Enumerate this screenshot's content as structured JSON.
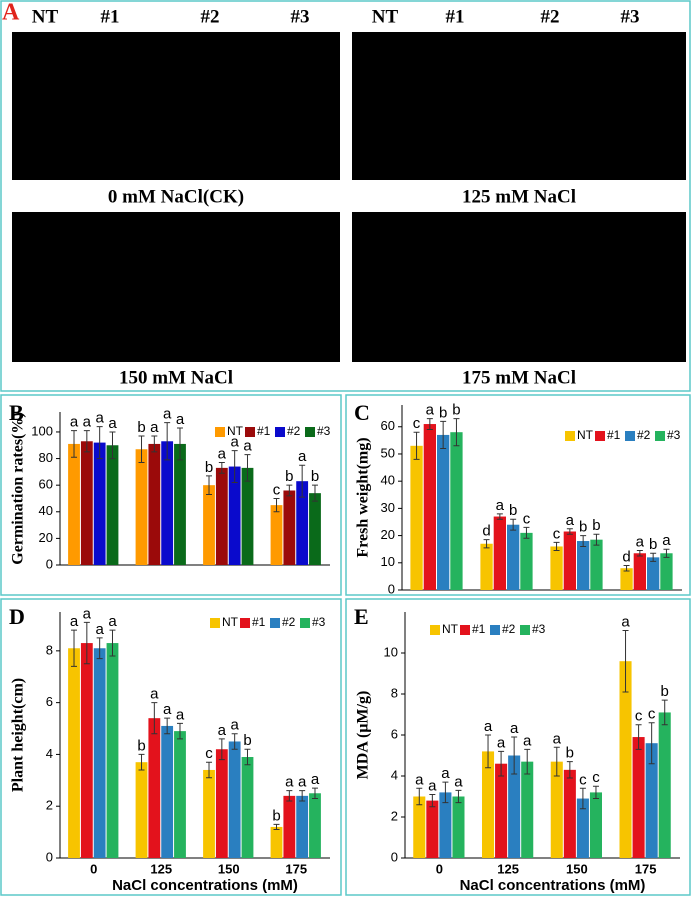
{
  "photos": {
    "panel": "A",
    "headers": [
      "NT",
      "#1",
      "#2",
      "#3"
    ],
    "captions": [
      "0 mM NaCl(CK)",
      "125 mM NaCl",
      "150 mM NaCl",
      "175 mM NaCl"
    ]
  },
  "chart_data": [
    {
      "type": "bar",
      "panel": "B",
      "y_label": "Germination rates(%)",
      "categories": [
        null,
        null,
        null,
        null
      ],
      "ylim": [
        0,
        115
      ],
      "yticks": [
        0,
        20,
        40,
        60,
        80,
        100
      ],
      "series": [
        {
          "name": "NT",
          "color": "#ff9a00",
          "values": [
            91,
            87,
            60,
            45
          ],
          "errors": [
            10,
            10,
            7,
            5
          ],
          "letters": [
            "a",
            "b",
            "b",
            "c"
          ]
        },
        {
          "name": "#1",
          "color": "#9b0a0a",
          "values": [
            93,
            91,
            73,
            56
          ],
          "errors": [
            8,
            6,
            4,
            4
          ],
          "letters": [
            "a",
            "a",
            "a",
            "b"
          ]
        },
        {
          "name": "#2",
          "color": "#0a0acc",
          "values": [
            92,
            93,
            74,
            63
          ],
          "errors": [
            12,
            14,
            12,
            12
          ],
          "letters": [
            "a",
            "a",
            "a",
            "a"
          ]
        },
        {
          "name": "#3",
          "color": "#0a6a1a",
          "values": [
            90,
            91,
            73,
            54
          ],
          "errors": [
            10,
            12,
            10,
            6
          ],
          "letters": [
            "a",
            "a",
            "a",
            "b"
          ]
        }
      ]
    },
    {
      "type": "bar",
      "panel": "C",
      "y_label": "Fresh weight(mg)",
      "categories": [
        null,
        null,
        null,
        null
      ],
      "ylim": [
        0,
        68
      ],
      "yticks": [
        0,
        10,
        20,
        30,
        40,
        50,
        60
      ],
      "series": [
        {
          "name": "NT",
          "color": "#f7c400",
          "values": [
            53,
            17,
            16,
            8
          ],
          "errors": [
            5,
            1.5,
            1.5,
            1
          ],
          "letters": [
            "c",
            "d",
            "c",
            "d"
          ]
        },
        {
          "name": "#1",
          "color": "#e3121c",
          "values": [
            61,
            27,
            21.5,
            13.5
          ],
          "errors": [
            2,
            1,
            1,
            1
          ],
          "letters": [
            "a",
            "a",
            "a",
            "a"
          ]
        },
        {
          "name": "#2",
          "color": "#2a7fc0",
          "values": [
            57,
            24,
            18,
            12
          ],
          "errors": [
            5,
            2,
            2,
            1.5
          ],
          "letters": [
            "b",
            "b",
            "b",
            "b"
          ]
        },
        {
          "name": "#3",
          "color": "#25b35e",
          "values": [
            58,
            21,
            18.5,
            13.5
          ],
          "errors": [
            5,
            2,
            2,
            1.5
          ],
          "letters": [
            "b",
            "c",
            "b",
            "a"
          ]
        }
      ]
    },
    {
      "type": "bar",
      "panel": "D",
      "y_label": "Plant height(cm)",
      "x_label": "NaCl concentrations (mM)",
      "categories": [
        "0",
        "125",
        "150",
        "175"
      ],
      "ylim": [
        0,
        9.5
      ],
      "yticks": [
        0,
        2,
        4,
        6,
        8
      ],
      "series": [
        {
          "name": "NT",
          "color": "#f7c400",
          "values": [
            8.1,
            3.7,
            3.4,
            1.2
          ],
          "errors": [
            0.7,
            0.3,
            0.3,
            0.1
          ],
          "letters": [
            "a",
            "b",
            "c",
            "b"
          ]
        },
        {
          "name": "#1",
          "color": "#e3121c",
          "values": [
            8.3,
            5.4,
            4.2,
            2.4
          ],
          "errors": [
            0.8,
            0.6,
            0.4,
            0.2
          ],
          "letters": [
            "a",
            "a",
            "a",
            "a"
          ]
        },
        {
          "name": "#2",
          "color": "#2a7fc0",
          "values": [
            8.1,
            5.1,
            4.5,
            2.4
          ],
          "errors": [
            0.4,
            0.3,
            0.3,
            0.2
          ],
          "letters": [
            "a",
            "a",
            "a",
            "a"
          ]
        },
        {
          "name": "#3",
          "color": "#25b35e",
          "values": [
            8.3,
            4.9,
            3.9,
            2.5
          ],
          "errors": [
            0.5,
            0.3,
            0.3,
            0.2
          ],
          "letters": [
            "a",
            "a",
            "b",
            "a"
          ]
        }
      ]
    },
    {
      "type": "bar",
      "panel": "E",
      "y_label": "MDA (μM/g)",
      "x_label": "NaCl concentrations (mM)",
      "categories": [
        "0",
        "125",
        "150",
        "175"
      ],
      "ylim": [
        0,
        12
      ],
      "yticks": [
        0,
        2,
        4,
        6,
        8,
        10
      ],
      "series": [
        {
          "name": "NT",
          "color": "#f7c400",
          "values": [
            3.0,
            5.2,
            4.7,
            9.6
          ],
          "errors": [
            0.4,
            0.8,
            0.7,
            1.5
          ],
          "letters": [
            "a",
            "a",
            "a",
            "a"
          ]
        },
        {
          "name": "#1",
          "color": "#e3121c",
          "values": [
            2.8,
            4.6,
            4.3,
            5.9
          ],
          "errors": [
            0.3,
            0.6,
            0.4,
            0.6
          ],
          "letters": [
            "a",
            "a",
            "b",
            "c"
          ]
        },
        {
          "name": "#2",
          "color": "#2a7fc0",
          "values": [
            3.2,
            5.0,
            2.9,
            5.6
          ],
          "errors": [
            0.5,
            0.9,
            0.5,
            1.0
          ],
          "letters": [
            "a",
            "a",
            "c",
            "c"
          ]
        },
        {
          "name": "#3",
          "color": "#25b35e",
          "values": [
            3.0,
            4.7,
            3.2,
            7.1
          ],
          "errors": [
            0.3,
            0.6,
            0.3,
            0.6
          ],
          "letters": [
            "a",
            "a",
            "c",
            "b"
          ]
        }
      ]
    }
  ]
}
